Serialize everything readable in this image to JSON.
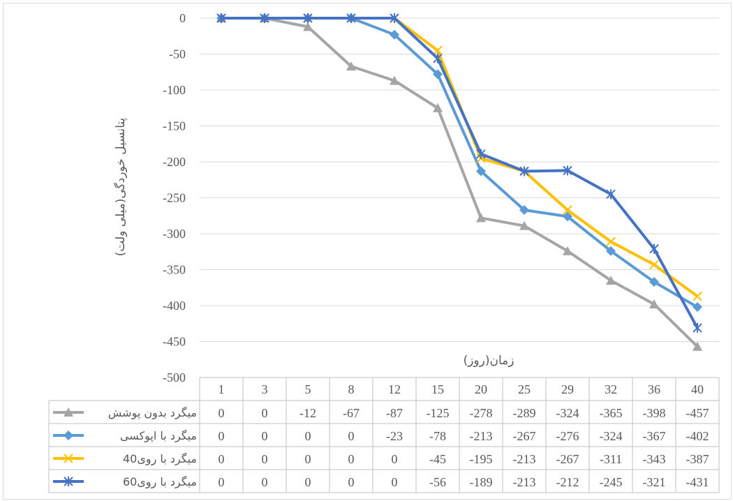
{
  "chart_data": {
    "type": "line",
    "title": "",
    "xlabel": "زمان(روز)",
    "ylabel": "پتانسیل خوردگی(میلی ولت)",
    "ylim": [
      -500,
      0
    ],
    "yticks": [
      0,
      -50,
      -100,
      -150,
      -200,
      -250,
      -300,
      -350,
      -400,
      -450,
      -500
    ],
    "categories": [
      "1",
      "3",
      "5",
      "8",
      "12",
      "15",
      "20",
      "25",
      "29",
      "32",
      "36",
      "40"
    ],
    "grid": true,
    "legend": "data-table",
    "series": [
      {
        "name": "میگرد بدون پوشش",
        "color": "#a5a5a5",
        "marker": "triangle",
        "values": [
          0,
          0,
          -12,
          -67,
          -87,
          -125,
          -278,
          -289,
          -324,
          -365,
          -398,
          -457
        ]
      },
      {
        "name": "میگرد با اپوکسی",
        "color": "#5b9bd5",
        "marker": "diamond",
        "values": [
          0,
          0,
          0,
          0,
          -23,
          -78,
          -213,
          -267,
          -276,
          -324,
          -367,
          -402
        ]
      },
      {
        "name": "میگرد با روی40",
        "color": "#ffc000",
        "marker": "x",
        "values": [
          0,
          0,
          0,
          0,
          0,
          -45,
          -195,
          -213,
          -267,
          -311,
          -343,
          -387
        ]
      },
      {
        "name": "میگرد با روی60",
        "color": "#4472c4",
        "marker": "star",
        "values": [
          0,
          0,
          0,
          0,
          0,
          -56,
          -189,
          -213,
          -212,
          -245,
          -321,
          -431
        ]
      }
    ]
  }
}
